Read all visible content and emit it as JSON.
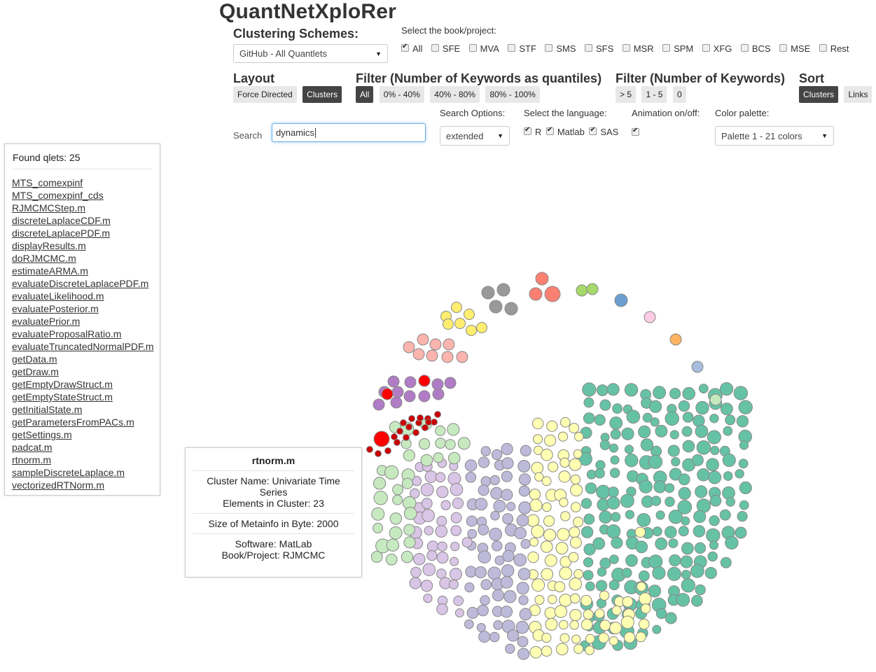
{
  "app": {
    "title": "QuantNetXploRer"
  },
  "clustering": {
    "label": "Clustering Schemes:",
    "selected": "GitHub - All Quantlets"
  },
  "books": {
    "label": "Select the book/project:",
    "items": [
      {
        "label": "All",
        "checked": true
      },
      {
        "label": "SFE",
        "checked": false
      },
      {
        "label": "MVA",
        "checked": false
      },
      {
        "label": "STF",
        "checked": false
      },
      {
        "label": "SMS",
        "checked": false
      },
      {
        "label": "SFS",
        "checked": false
      },
      {
        "label": "MSR",
        "checked": false
      },
      {
        "label": "SPM",
        "checked": false
      },
      {
        "label": "XFG",
        "checked": false
      },
      {
        "label": "BCS",
        "checked": false
      },
      {
        "label": "MSE",
        "checked": false
      },
      {
        "label": "Rest",
        "checked": false
      }
    ]
  },
  "layout": {
    "label": "Layout",
    "buttons": [
      "Force Directed",
      "Clusters"
    ],
    "active": 1
  },
  "filter_quantiles": {
    "label": "Filter (Number of Keywords as quantiles)",
    "buttons": [
      "All",
      "0% - 40%",
      "40% - 80%",
      "80% - 100%"
    ],
    "active": 0
  },
  "filter_keywords": {
    "label": "Filter (Number of Keywords)",
    "buttons": [
      "> 5",
      "1 - 5",
      "0"
    ]
  },
  "sort": {
    "label": "Sort",
    "buttons": [
      "Clusters",
      "Links"
    ],
    "active": 0
  },
  "search": {
    "label": "Search",
    "value": "dynamics",
    "options_label": "Search Options:",
    "options_selected": "extended"
  },
  "language": {
    "label": "Select the language:",
    "items": [
      {
        "label": "R",
        "checked": true
      },
      {
        "label": "Matlab",
        "checked": true
      },
      {
        "label": "SAS",
        "checked": true
      }
    ]
  },
  "animation": {
    "label": "Animation on/off:",
    "checked": true
  },
  "palette": {
    "label": "Color palette:",
    "selected": "Palette 1 - 21 colors"
  },
  "found": {
    "title": "Found qlets: 25",
    "items": [
      "MTS_comexpinf",
      "MTS_comexpinf_cds",
      "RJMCMCStep.m",
      "discreteLaplaceCDF.m",
      "discreteLaplacePDF.m",
      "displayResults.m",
      "doRJMCMC.m",
      "estimateARMA.m",
      "evaluateDiscreteLaplacePDF.m",
      "evaluateLikelihood.m",
      "evaluatePosterior.m",
      "evaluatePrior.m",
      "evaluateProposalRatio.m",
      "evaluateTruncatedNormalPDF.m",
      "getData.m",
      "getDraw.m",
      "getEmptyDrawStruct.m",
      "getEmptyStateStruct.m",
      "getInitialState.m",
      "getParametersFromPACs.m",
      "getSettings.m",
      "padcat.m",
      "rtnorm.m",
      "sampleDiscreteLaplace.m",
      "vectorizedRTNorm.m"
    ]
  },
  "tooltip": {
    "name": "rtnorm.m",
    "cluster_name": "Cluster Name: Univariate Time Series",
    "elements": "Elements in Cluster: 23",
    "size": "Size of Metainfo in Byte: 2000",
    "software": "Software: MatLab",
    "book": "Book/Project: RJMCMC"
  },
  "colors": {
    "teal": "#66c2a5",
    "yellow": "#ffffb3",
    "lavender": "#bebada",
    "lilac": "#d9c5e6",
    "green": "#c7e9c0",
    "darkred": "#cc0000",
    "red": "#ff0000",
    "purple": "#b07cc6",
    "salmon": "#fbb4ae",
    "gold": "#ffed6f",
    "grey": "#999999",
    "coral": "#fb8072",
    "lime": "#a6d96a",
    "blue": "#6a9fd0",
    "pink": "#fccde5",
    "orange": "#fdb462",
    "lightblue": "#a6bddb"
  }
}
